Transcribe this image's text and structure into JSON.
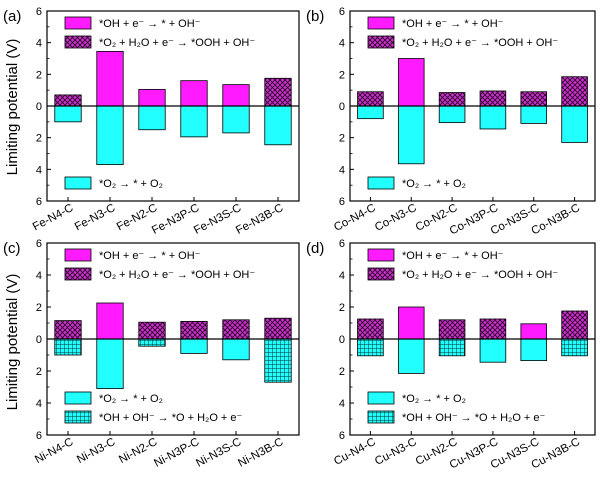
{
  "figure": {
    "shared_ylabel": "Limiting potential (V)"
  },
  "chart_data": [
    {
      "type": "bar",
      "panel_label": "(a)",
      "categories": [
        "Fe-N4-C",
        "Fe-N3-C",
        "Fe-N2-C",
        "Fe-N3P-C",
        "Fe-N3S-C",
        "Fe-N3B-C"
      ],
      "ylabel": "Limiting potential (V)",
      "ylim": [
        -6,
        6
      ],
      "yticks": [
        "6",
        "4",
        "2",
        "0",
        "2",
        "4",
        "6"
      ],
      "series": [
        {
          "name": "*OH + e⁻ → * + OH⁻",
          "direction": "up",
          "pattern": "solid",
          "color": "#ff1aff",
          "values": [
            null,
            3.45,
            1.05,
            1.6,
            1.35,
            null
          ]
        },
        {
          "name": "*O₂ + H₂O + e⁻ → *OOH + OH⁻",
          "direction": "up",
          "pattern": "crosshatch",
          "color": "#cc33cc",
          "values": [
            0.7,
            null,
            null,
            null,
            null,
            1.75
          ]
        },
        {
          "name": "*O₂ → * + O₂",
          "direction": "down",
          "pattern": "solid",
          "color": "#22ffff",
          "values": [
            1.0,
            3.7,
            1.5,
            1.95,
            1.7,
            2.45
          ]
        }
      ]
    },
    {
      "type": "bar",
      "panel_label": "(b)",
      "categories": [
        "Co-N4-C",
        "Co-N3-C",
        "Co-N2-C",
        "Co-N3P-C",
        "Co-N3S-C",
        "Co-N3B-C"
      ],
      "ylabel": "",
      "ylim": [
        -6,
        6
      ],
      "yticks": [
        "6",
        "4",
        "2",
        "0",
        "2",
        "4",
        "6"
      ],
      "series": [
        {
          "name": "*OH + e⁻ → * + OH⁻",
          "direction": "up",
          "pattern": "solid",
          "color": "#ff1aff",
          "values": [
            null,
            3.0,
            null,
            null,
            null,
            null
          ]
        },
        {
          "name": "*O₂ + H₂O + e⁻ → *OOH + OH⁻",
          "direction": "up",
          "pattern": "crosshatch",
          "color": "#cc33cc",
          "values": [
            0.9,
            null,
            0.85,
            0.95,
            0.9,
            1.85
          ]
        },
        {
          "name": "*O₂ → * + O₂",
          "direction": "down",
          "pattern": "solid",
          "color": "#22ffff",
          "values": [
            0.8,
            3.65,
            1.05,
            1.45,
            1.1,
            2.3
          ]
        }
      ]
    },
    {
      "type": "bar",
      "panel_label": "(c)",
      "categories": [
        "Ni-N4-C",
        "Ni-N3-C",
        "Ni-N2-C",
        "Ni-N3P-C",
        "Ni-N3S-C",
        "Ni-N3B-C"
      ],
      "ylabel": "Limiting potential (V)",
      "ylim": [
        -6,
        6
      ],
      "yticks": [
        "6",
        "4",
        "2",
        "0",
        "2",
        "4",
        "6"
      ],
      "series": [
        {
          "name": "*OH + e⁻ → * + OH⁻",
          "direction": "up",
          "pattern": "solid",
          "color": "#ff1aff",
          "values": [
            null,
            2.25,
            null,
            null,
            null,
            null
          ]
        },
        {
          "name": "*O₂ + H₂O + e⁻ → *OOH + OH⁻",
          "direction": "up",
          "pattern": "crosshatch",
          "color": "#cc33cc",
          "values": [
            1.15,
            null,
            1.05,
            1.1,
            1.2,
            1.3
          ]
        },
        {
          "name": "*O₂ → * + O₂",
          "direction": "down",
          "pattern": "solid",
          "color": "#22ffff",
          "values": [
            null,
            3.1,
            null,
            0.9,
            1.3,
            null
          ]
        },
        {
          "name": "*OH + OH⁻ → *O + H₂O + e⁻",
          "direction": "down",
          "pattern": "grid",
          "color": "#22ffff",
          "values": [
            1.0,
            null,
            0.45,
            null,
            null,
            2.7
          ]
        }
      ]
    },
    {
      "type": "bar",
      "panel_label": "(d)",
      "categories": [
        "Cu-N4-C",
        "Cu-N3-C",
        "Cu-N2-C",
        "Cu-N3P-C",
        "Cu-N3S-C",
        "Cu-N3B-C"
      ],
      "ylabel": "",
      "ylim": [
        -6,
        6
      ],
      "yticks": [
        "6",
        "4",
        "2",
        "0",
        "2",
        "4",
        "6"
      ],
      "series": [
        {
          "name": "*OH + e⁻ → * + OH⁻",
          "direction": "up",
          "pattern": "solid",
          "color": "#ff1aff",
          "values": [
            null,
            2.0,
            null,
            null,
            0.95,
            null
          ]
        },
        {
          "name": "*O₂ + H₂O + e⁻ → *OOH + OH⁻",
          "direction": "up",
          "pattern": "crosshatch",
          "color": "#cc33cc",
          "values": [
            1.25,
            null,
            1.2,
            1.25,
            null,
            1.75
          ]
        },
        {
          "name": "*O₂ → * + O₂",
          "direction": "down",
          "pattern": "solid",
          "color": "#22ffff",
          "values": [
            null,
            2.15,
            null,
            1.45,
            1.35,
            null
          ]
        },
        {
          "name": "*OH + OH⁻ → *O + H₂O + e⁻",
          "direction": "down",
          "pattern": "grid",
          "color": "#22ffff",
          "values": [
            1.05,
            null,
            1.05,
            null,
            null,
            1.05
          ]
        }
      ]
    }
  ]
}
